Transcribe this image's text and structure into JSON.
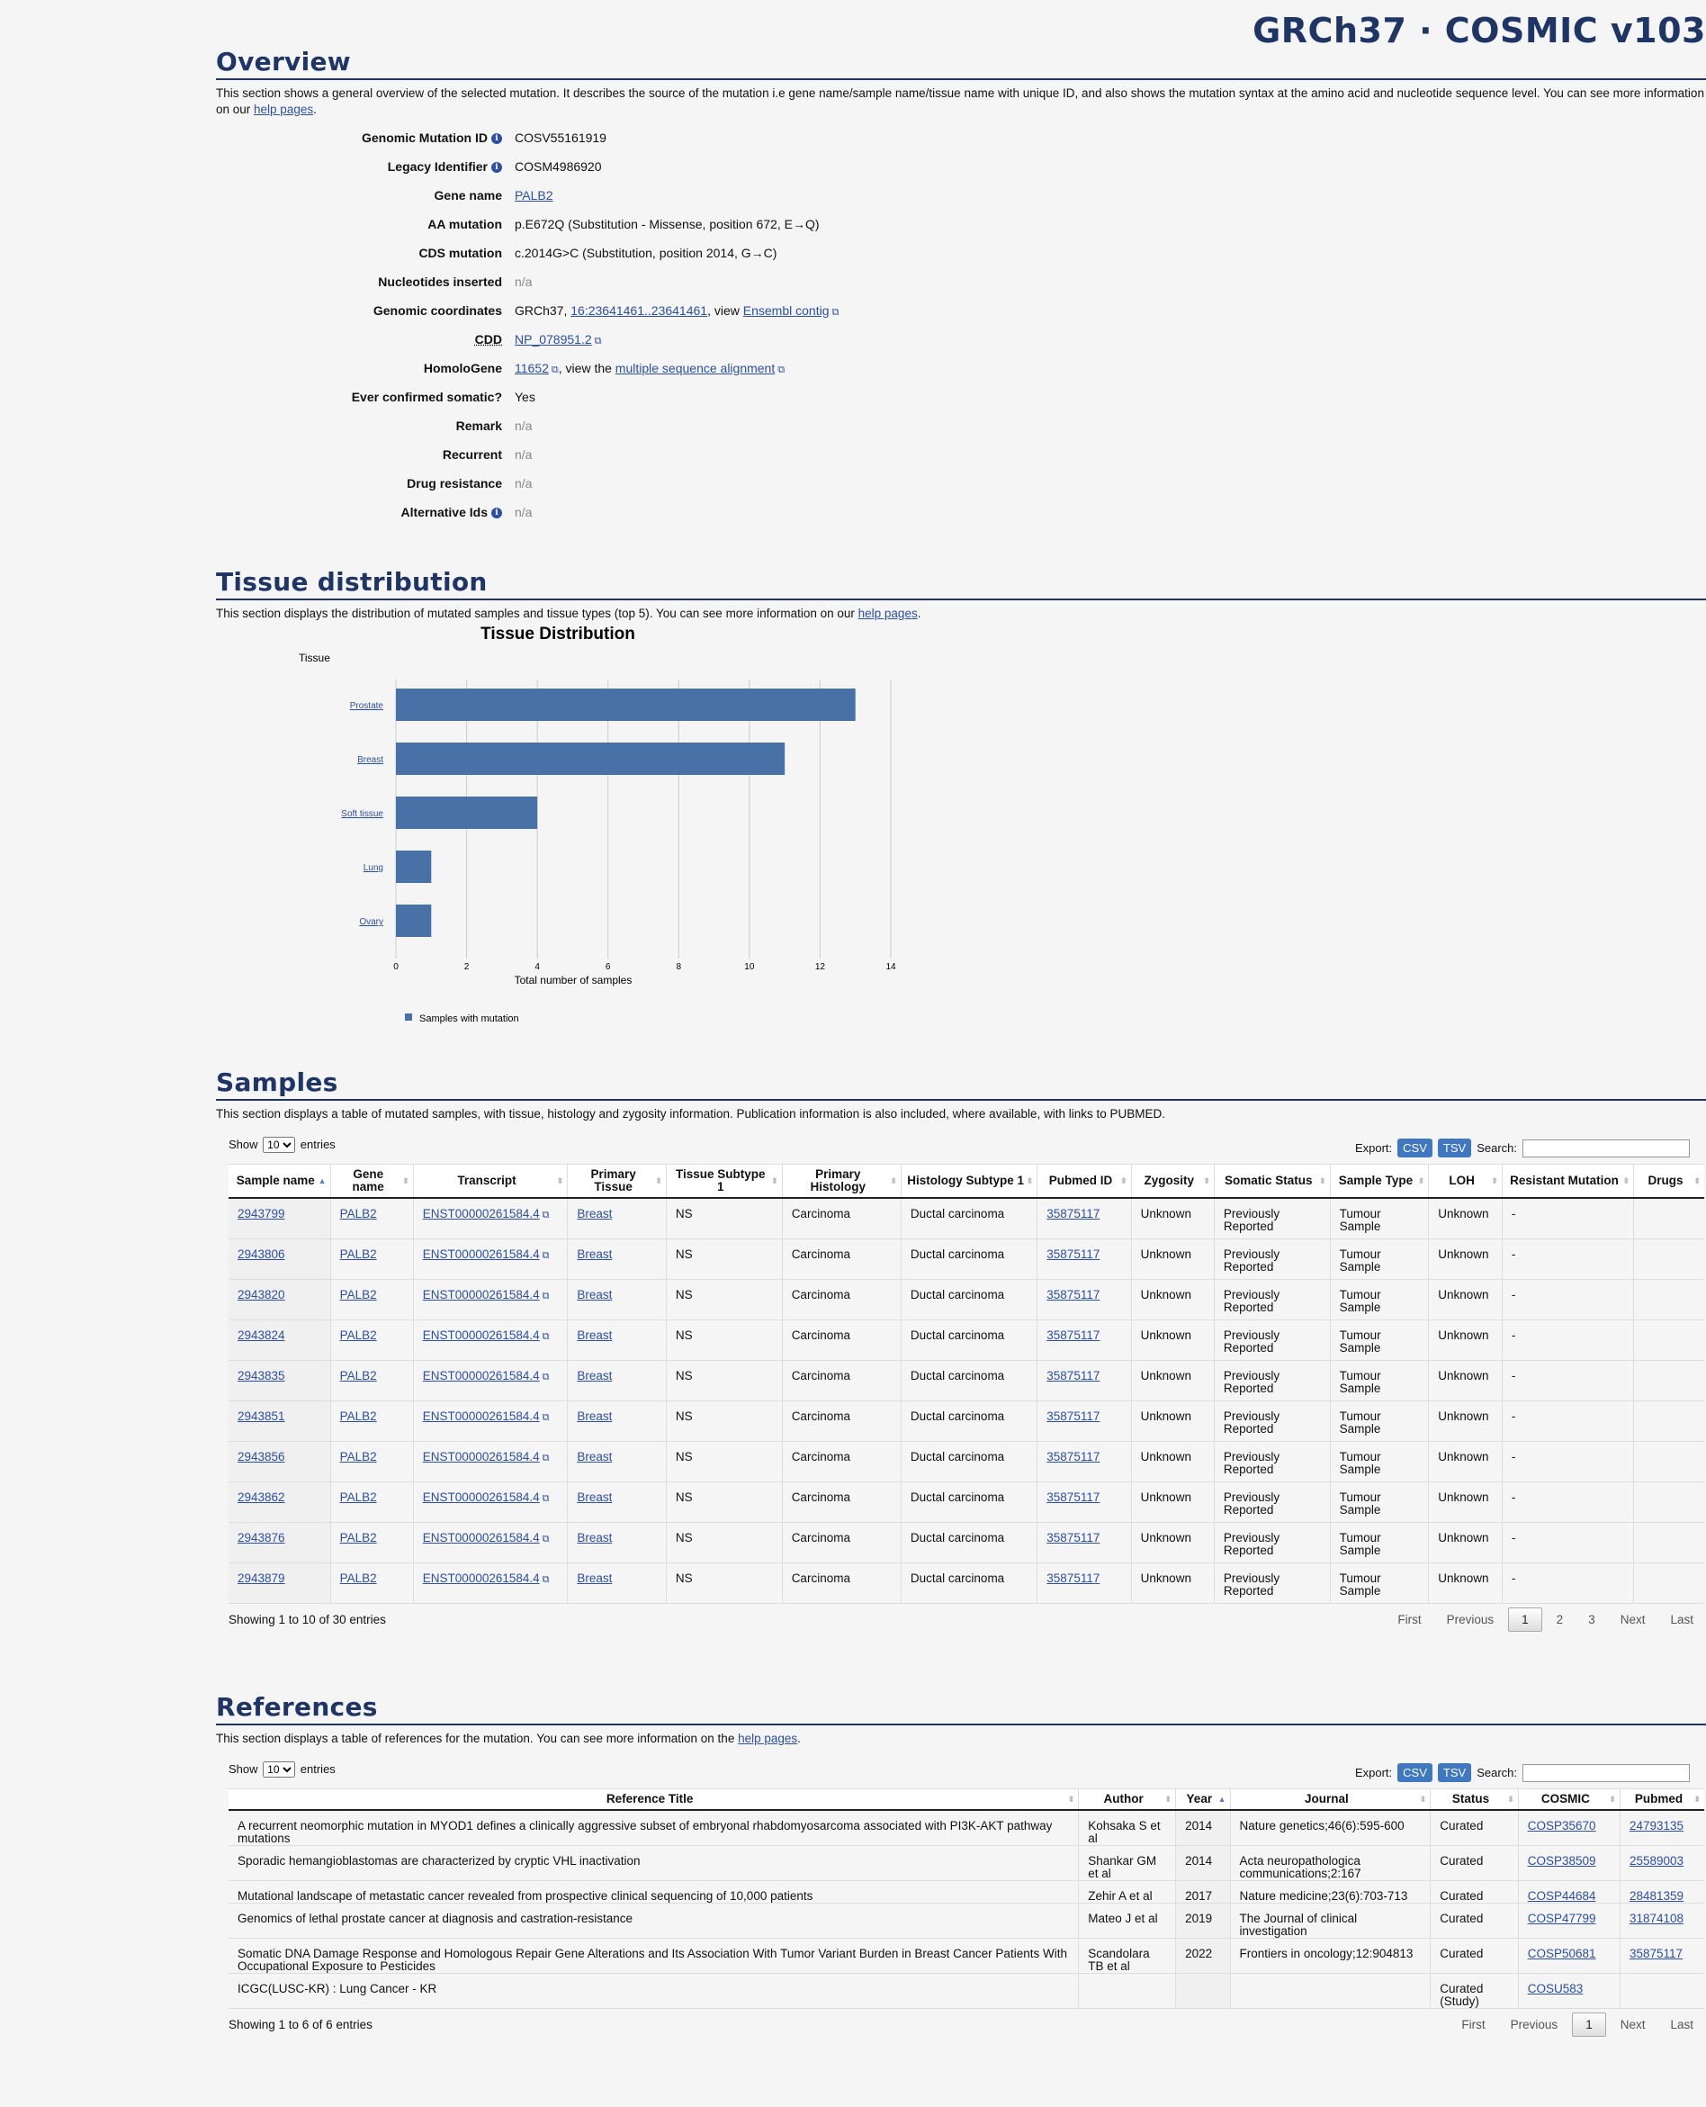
{
  "brand": "GRCh37 · COSMIC v103",
  "overview": {
    "title": "Overview",
    "desc_prefix": "This section shows a general overview of the selected mutation. It describes the source of the mutation i.e gene name/sample name/tissue name with unique ID, and also shows the mutation syntax at the amino acid and nucleotide sequence level. You can see more information on our ",
    "help_link": "help pages",
    "desc_suffix": ".",
    "rows": {
      "gmid_label": "Genomic Mutation ID",
      "gmid": "COSV55161919",
      "legacy_label": "Legacy Identifier",
      "legacy": "COSM4986920",
      "gene_label": "Gene name",
      "gene": "PALB2",
      "aa_label": "AA mutation",
      "aa": "p.E672Q (Substitution - Missense, position 672, E→Q)",
      "cds_label": "CDS mutation",
      "cds": "c.2014G>C (Substitution, position 2014, G→C)",
      "nuc_label": "Nucleotides inserted",
      "nuc": "n/a",
      "coord_label": "Genomic coordinates",
      "coord_prefix": "GRCh37, ",
      "coord_link": "16:23641461..23641461",
      "coord_mid": ", view ",
      "coord_ensembl": "Ensembl contig",
      "cdd_label": "CDD",
      "cdd": "NP_078951.2",
      "homolo_label": "HomoloGene",
      "homolo": "11652",
      "homolo_mid": ", view the ",
      "homolo_msa": "multiple sequence alignment",
      "confirmed_label": "Ever confirmed somatic?",
      "confirmed": "Yes",
      "remark_label": "Remark",
      "remark": "n/a",
      "recurrent_label": "Recurrent",
      "recurrent": "n/a",
      "drug_label": "Drug resistance",
      "drug": "n/a",
      "alt_label": "Alternative Ids",
      "alt": "n/a"
    }
  },
  "tissue": {
    "title": "Tissue distribution",
    "desc_prefix": "This section displays the distribution of mutated samples and tissue types (top 5). You can see more information on our ",
    "help_link": "help pages",
    "desc_suffix": "."
  },
  "chart_data": {
    "type": "bar",
    "orientation": "horizontal",
    "title": "Tissue Distribution",
    "ylabel": "Tissue",
    "xlabel": "Total number of samples",
    "categories": [
      "Prostate",
      "Breast",
      "Soft tissue",
      "Lung",
      "Ovary"
    ],
    "series": [
      {
        "name": "Samples with mutation",
        "values": [
          13,
          11,
          4,
          1,
          1
        ],
        "color": "#4771a7"
      }
    ],
    "xlim": [
      0,
      14
    ],
    "xticks": [
      "0",
      "2",
      "4",
      "6",
      "8",
      "10",
      "12",
      "14"
    ],
    "grid": true,
    "legend": "bottom-left"
  },
  "samples": {
    "title": "Samples",
    "desc": "This section displays a table of mutated samples, with tissue, histology and zygosity information. Publication information is also included, where available, with links to PUBMED.",
    "show": "Show",
    "entries": "entries",
    "page_len": "10",
    "export": "Export:",
    "csv": "CSV",
    "tsv": "TSV",
    "search": "Search:",
    "headers": [
      "Sample name",
      "Gene name",
      "Transcript",
      "Primary Tissue",
      "Tissue Subtype 1",
      "Primary Histology",
      "Histology Subtype 1",
      "Pubmed ID",
      "Zygosity",
      "Somatic Status",
      "Sample Type",
      "LOH",
      "Resistant Mutation",
      "Drugs"
    ],
    "rows": [
      [
        "2943799",
        "PALB2",
        "ENST00000261584.4",
        "Breast",
        "NS",
        "Carcinoma",
        "Ductal carcinoma",
        "35875117",
        "Unknown",
        "Previously Reported",
        "Tumour Sample",
        "Unknown",
        "-",
        ""
      ],
      [
        "2943806",
        "PALB2",
        "ENST00000261584.4",
        "Breast",
        "NS",
        "Carcinoma",
        "Ductal carcinoma",
        "35875117",
        "Unknown",
        "Previously Reported",
        "Tumour Sample",
        "Unknown",
        "-",
        ""
      ],
      [
        "2943820",
        "PALB2",
        "ENST00000261584.4",
        "Breast",
        "NS",
        "Carcinoma",
        "Ductal carcinoma",
        "35875117",
        "Unknown",
        "Previously Reported",
        "Tumour Sample",
        "Unknown",
        "-",
        ""
      ],
      [
        "2943824",
        "PALB2",
        "ENST00000261584.4",
        "Breast",
        "NS",
        "Carcinoma",
        "Ductal carcinoma",
        "35875117",
        "Unknown",
        "Previously Reported",
        "Tumour Sample",
        "Unknown",
        "-",
        ""
      ],
      [
        "2943835",
        "PALB2",
        "ENST00000261584.4",
        "Breast",
        "NS",
        "Carcinoma",
        "Ductal carcinoma",
        "35875117",
        "Unknown",
        "Previously Reported",
        "Tumour Sample",
        "Unknown",
        "-",
        ""
      ],
      [
        "2943851",
        "PALB2",
        "ENST00000261584.4",
        "Breast",
        "NS",
        "Carcinoma",
        "Ductal carcinoma",
        "35875117",
        "Unknown",
        "Previously Reported",
        "Tumour Sample",
        "Unknown",
        "-",
        ""
      ],
      [
        "2943856",
        "PALB2",
        "ENST00000261584.4",
        "Breast",
        "NS",
        "Carcinoma",
        "Ductal carcinoma",
        "35875117",
        "Unknown",
        "Previously Reported",
        "Tumour Sample",
        "Unknown",
        "-",
        ""
      ],
      [
        "2943862",
        "PALB2",
        "ENST00000261584.4",
        "Breast",
        "NS",
        "Carcinoma",
        "Ductal carcinoma",
        "35875117",
        "Unknown",
        "Previously Reported",
        "Tumour Sample",
        "Unknown",
        "-",
        ""
      ],
      [
        "2943876",
        "PALB2",
        "ENST00000261584.4",
        "Breast",
        "NS",
        "Carcinoma",
        "Ductal carcinoma",
        "35875117",
        "Unknown",
        "Previously Reported",
        "Tumour Sample",
        "Unknown",
        "-",
        ""
      ],
      [
        "2943879",
        "PALB2",
        "ENST00000261584.4",
        "Breast",
        "NS",
        "Carcinoma",
        "Ductal carcinoma",
        "35875117",
        "Unknown",
        "Previously Reported",
        "Tumour Sample",
        "Unknown",
        "-",
        ""
      ]
    ],
    "info": "Showing 1 to 10 of 30 entries",
    "pager": [
      "First",
      "Previous",
      "1",
      "2",
      "3",
      "Next",
      "Last"
    ]
  },
  "references": {
    "title": "References",
    "desc_prefix": "This section displays a table of references for the mutation. You can see more information on the ",
    "help_link": "help pages",
    "desc_suffix": ".",
    "show": "Show",
    "entries": "entries",
    "page_len": "10",
    "export": "Export:",
    "csv": "CSV",
    "tsv": "TSV",
    "search": "Search:",
    "headers": [
      "Reference Title",
      "Author",
      "Year",
      "Journal",
      "Status",
      "COSMIC",
      "Pubmed"
    ],
    "rows": [
      [
        "A recurrent neomorphic mutation in MYOD1 defines a clinically aggressive subset of embryonal rhabdomyosarcoma associated with PI3K-AKT pathway mutations",
        "Kohsaka S et al",
        "2014",
        "Nature genetics;46(6):595-600",
        "Curated",
        "COSP35670",
        "24793135"
      ],
      [
        "Sporadic hemangioblastomas are characterized by cryptic VHL inactivation",
        "Shankar GM et al",
        "2014",
        "Acta neuropathologica communications;2:167",
        "Curated",
        "COSP38509",
        "25589003"
      ],
      [
        "Mutational landscape of metastatic cancer revealed from prospective clinical sequencing of 10,000 patients",
        "Zehir A et al",
        "2017",
        "Nature medicine;23(6):703-713",
        "Curated",
        "COSP44684",
        "28481359"
      ],
      [
        "Genomics of lethal prostate cancer at diagnosis and castration-resistance",
        "Mateo J et al",
        "2019",
        "The Journal of clinical investigation",
        "Curated",
        "COSP47799",
        "31874108"
      ],
      [
        "Somatic DNA Damage Response and Homologous Repair Gene Alterations and Its Association With Tumor Variant Burden in Breast Cancer Patients With Occupational Exposure to Pesticides",
        "Scandolara TB et al",
        "2022",
        "Frontiers in oncology;12:904813",
        "Curated",
        "COSP50681",
        "35875117"
      ],
      [
        "ICGC(LUSC-KR) : Lung Cancer - KR",
        "",
        "",
        "",
        "Curated (Study)",
        "COSU583",
        ""
      ]
    ],
    "info": "Showing 1 to 6 of 6 entries",
    "pager": [
      "First",
      "Previous",
      "1",
      "Next",
      "Last"
    ]
  }
}
